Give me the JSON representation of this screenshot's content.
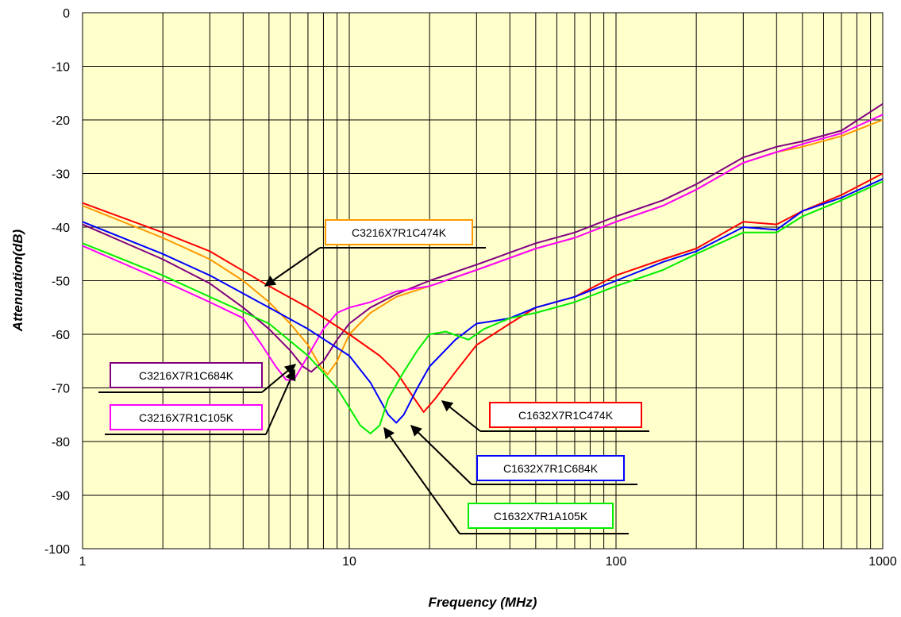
{
  "chart_data": {
    "type": "line",
    "xlabel": "Frequency (MHz)",
    "ylabel": "Attenuation(dB)",
    "xscale": "log",
    "xlim": [
      1,
      1000
    ],
    "ylim": [
      -100,
      0
    ],
    "x_ticks": [
      "1",
      "10",
      "100",
      "1000"
    ],
    "y_ticks": [
      "0",
      "-10",
      "-20",
      "-30",
      "-40",
      "-50",
      "-60",
      "-70",
      "-80",
      "-90",
      "-100"
    ],
    "grid": true,
    "plot_background": "#ffffcc",
    "series": [
      {
        "name": "C3216X7R1C474K",
        "color": "#ff9900",
        "points": [
          [
            1,
            -36
          ],
          [
            2,
            -42
          ],
          [
            3,
            -46
          ],
          [
            4,
            -50
          ],
          [
            5,
            -54
          ],
          [
            6,
            -58
          ],
          [
            7,
            -62
          ],
          [
            7.8,
            -66
          ],
          [
            8.3,
            -67.5
          ],
          [
            9,
            -65
          ],
          [
            10,
            -60
          ],
          [
            12,
            -56
          ],
          [
            15,
            -53
          ],
          [
            20,
            -51
          ],
          [
            30,
            -48
          ],
          [
            50,
            -44
          ],
          [
            70,
            -42
          ],
          [
            100,
            -39
          ],
          [
            150,
            -36
          ],
          [
            200,
            -33
          ],
          [
            300,
            -28
          ],
          [
            400,
            -26
          ],
          [
            500,
            -25
          ],
          [
            700,
            -23
          ],
          [
            1000,
            -20
          ]
        ]
      },
      {
        "name": "C3216X7R1C684K",
        "color": "#800080",
        "points": [
          [
            1,
            -39.5
          ],
          [
            2,
            -46
          ],
          [
            3,
            -50.5
          ],
          [
            4,
            -55
          ],
          [
            5,
            -59
          ],
          [
            6,
            -63
          ],
          [
            6.7,
            -66
          ],
          [
            7.2,
            -67
          ],
          [
            8,
            -65
          ],
          [
            9,
            -61
          ],
          [
            10,
            -58
          ],
          [
            12,
            -55
          ],
          [
            15,
            -52.5
          ],
          [
            20,
            -50
          ],
          [
            30,
            -47
          ],
          [
            50,
            -43
          ],
          [
            70,
            -41
          ],
          [
            100,
            -38
          ],
          [
            150,
            -35
          ],
          [
            200,
            -32
          ],
          [
            300,
            -27
          ],
          [
            400,
            -25
          ],
          [
            500,
            -24
          ],
          [
            700,
            -22
          ],
          [
            1000,
            -17
          ]
        ]
      },
      {
        "name": "C3216X7R1C105K",
        "color": "#ff00ff",
        "points": [
          [
            1,
            -43.5
          ],
          [
            2,
            -50
          ],
          [
            3,
            -54
          ],
          [
            4,
            -57
          ],
          [
            4.7,
            -62
          ],
          [
            5.3,
            -66
          ],
          [
            5.8,
            -68.5
          ],
          [
            6.2,
            -68.5
          ],
          [
            7,
            -64
          ],
          [
            8,
            -59
          ],
          [
            9,
            -56
          ],
          [
            10,
            -55
          ],
          [
            12,
            -54
          ],
          [
            15,
            -52
          ],
          [
            20,
            -51
          ],
          [
            30,
            -48
          ],
          [
            50,
            -44
          ],
          [
            70,
            -42
          ],
          [
            100,
            -39
          ],
          [
            150,
            -36
          ],
          [
            200,
            -33
          ],
          [
            300,
            -28
          ],
          [
            400,
            -26
          ],
          [
            500,
            -24.5
          ],
          [
            700,
            -22.5
          ],
          [
            1000,
            -19
          ]
        ]
      },
      {
        "name": "C1632X7R1C474K",
        "color": "#ff0000",
        "points": [
          [
            1,
            -35.5
          ],
          [
            2,
            -41
          ],
          [
            3,
            -44.5
          ],
          [
            5,
            -51
          ],
          [
            7,
            -55
          ],
          [
            10,
            -60
          ],
          [
            13,
            -64
          ],
          [
            15,
            -67
          ],
          [
            17,
            -71
          ],
          [
            19,
            -74.5
          ],
          [
            21,
            -72
          ],
          [
            25,
            -67
          ],
          [
            30,
            -62
          ],
          [
            40,
            -58
          ],
          [
            50,
            -55
          ],
          [
            70,
            -53
          ],
          [
            100,
            -49
          ],
          [
            150,
            -46
          ],
          [
            200,
            -44
          ],
          [
            300,
            -39
          ],
          [
            400,
            -39.5
          ],
          [
            500,
            -37
          ],
          [
            700,
            -34
          ],
          [
            1000,
            -30
          ]
        ]
      },
      {
        "name": "C1632X7R1C684K",
        "color": "#0000ff",
        "points": [
          [
            1,
            -39
          ],
          [
            2,
            -45
          ],
          [
            3,
            -49
          ],
          [
            5,
            -55
          ],
          [
            7,
            -59
          ],
          [
            10,
            -64
          ],
          [
            12,
            -69
          ],
          [
            14,
            -75
          ],
          [
            15,
            -76.5
          ],
          [
            16,
            -75
          ],
          [
            18,
            -70
          ],
          [
            20,
            -66
          ],
          [
            25,
            -61
          ],
          [
            30,
            -58
          ],
          [
            35,
            -57.5
          ],
          [
            40,
            -57
          ],
          [
            50,
            -55
          ],
          [
            70,
            -53
          ],
          [
            100,
            -50
          ],
          [
            150,
            -46.5
          ],
          [
            200,
            -44.5
          ],
          [
            300,
            -40
          ],
          [
            400,
            -40.5
          ],
          [
            500,
            -37
          ],
          [
            700,
            -34.5
          ],
          [
            1000,
            -31
          ]
        ]
      },
      {
        "name": "C1632X7R1A105K",
        "color": "#00ee00",
        "points": [
          [
            1,
            -43
          ],
          [
            2,
            -49
          ],
          [
            3,
            -53
          ],
          [
            5,
            -58
          ],
          [
            7,
            -64
          ],
          [
            9,
            -70
          ],
          [
            11,
            -77
          ],
          [
            12,
            -78.5
          ],
          [
            13,
            -77
          ],
          [
            14,
            -72
          ],
          [
            16,
            -67
          ],
          [
            18,
            -63
          ],
          [
            20,
            -60
          ],
          [
            23,
            -59.5
          ],
          [
            28,
            -61
          ],
          [
            32,
            -59
          ],
          [
            40,
            -57
          ],
          [
            50,
            -56
          ],
          [
            70,
            -54
          ],
          [
            100,
            -51
          ],
          [
            150,
            -48
          ],
          [
            200,
            -45
          ],
          [
            300,
            -41
          ],
          [
            400,
            -41
          ],
          [
            500,
            -38
          ],
          [
            700,
            -35
          ],
          [
            1000,
            -31.5
          ]
        ]
      }
    ]
  }
}
